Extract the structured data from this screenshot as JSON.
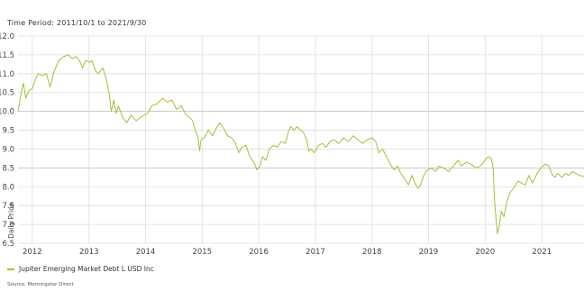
{
  "header": {
    "time_period": "Time Period: 2011/10/1 to 2021/9/30"
  },
  "legend": {
    "label": "Jupiter Emerging Market Debt L USD Inc"
  },
  "footer": {
    "source": "Source: Morningstar Direct"
  },
  "colors": {
    "line": "#9cc43c",
    "grid": "#dddddd",
    "baseline": "#bbbbbb"
  },
  "chart_data": {
    "type": "line",
    "title": "",
    "xlabel": "",
    "ylabel": "Daily Price",
    "ylim": [
      6.5,
      12.0
    ],
    "xlim": [
      "2011-10-01",
      "2021-09-30"
    ],
    "y_ticks": [
      6.5,
      7.0,
      7.5,
      8.0,
      8.5,
      9.0,
      9.5,
      10.0,
      10.5,
      11.0,
      11.5,
      12.0
    ],
    "x_ticks": [
      {
        "label": "2012",
        "date": "2012-01-01"
      },
      {
        "label": "2013",
        "date": "2013-01-01"
      },
      {
        "label": "2014",
        "date": "2014-01-01"
      },
      {
        "label": "2015",
        "date": "2015-01-01"
      },
      {
        "label": "2016",
        "date": "2016-01-01"
      },
      {
        "label": "2017",
        "date": "2017-01-01"
      },
      {
        "label": "2018",
        "date": "2018-01-01"
      },
      {
        "label": "2019",
        "date": "2019-01-01"
      },
      {
        "label": "2020",
        "date": "2020-01-01"
      },
      {
        "label": "2021",
        "date": "2021-01-01"
      }
    ],
    "grid": true,
    "series": [
      {
        "name": "Jupiter Emerging Market Debt L USD Inc",
        "points": [
          [
            "2011-10-01",
            10.0
          ],
          [
            "2011-10-20",
            10.45
          ],
          [
            "2011-11-05",
            10.75
          ],
          [
            "2011-11-20",
            10.35
          ],
          [
            "2011-12-10",
            10.55
          ],
          [
            "2012-01-01",
            10.6
          ],
          [
            "2012-01-20",
            10.85
          ],
          [
            "2012-02-10",
            11.0
          ],
          [
            "2012-03-05",
            10.95
          ],
          [
            "2012-04-01",
            11.0
          ],
          [
            "2012-04-25",
            10.65
          ],
          [
            "2012-05-20",
            11.05
          ],
          [
            "2012-06-20",
            11.35
          ],
          [
            "2012-07-20",
            11.45
          ],
          [
            "2012-08-20",
            11.5
          ],
          [
            "2012-09-15",
            11.4
          ],
          [
            "2012-10-10",
            11.45
          ],
          [
            "2012-11-01",
            11.35
          ],
          [
            "2012-11-20",
            11.15
          ],
          [
            "2012-12-10",
            11.35
          ],
          [
            "2013-01-05",
            11.3
          ],
          [
            "2013-01-20",
            11.35
          ],
          [
            "2013-02-10",
            11.1
          ],
          [
            "2013-03-01",
            11.0
          ],
          [
            "2013-04-01",
            11.15
          ],
          [
            "2013-04-20",
            10.9
          ],
          [
            "2013-05-10",
            10.5
          ],
          [
            "2013-05-25",
            10.0
          ],
          [
            "2013-06-10",
            10.3
          ],
          [
            "2013-06-25",
            9.95
          ],
          [
            "2013-07-10",
            10.15
          ],
          [
            "2013-08-05",
            9.85
          ],
          [
            "2013-09-01",
            9.7
          ],
          [
            "2013-10-01",
            9.9
          ],
          [
            "2013-11-01",
            9.75
          ],
          [
            "2013-12-01",
            9.85
          ],
          [
            "2014-01-15",
            9.95
          ],
          [
            "2014-02-10",
            10.15
          ],
          [
            "2014-03-15",
            10.2
          ],
          [
            "2014-04-20",
            10.35
          ],
          [
            "2014-05-20",
            10.25
          ],
          [
            "2014-06-20",
            10.3
          ],
          [
            "2014-07-20",
            10.05
          ],
          [
            "2014-08-20",
            10.15
          ],
          [
            "2014-09-20",
            9.9
          ],
          [
            "2014-10-10",
            9.85
          ],
          [
            "2014-11-01",
            9.75
          ],
          [
            "2014-11-20",
            9.45
          ],
          [
            "2014-12-05",
            9.35
          ],
          [
            "2014-12-15",
            8.95
          ],
          [
            "2014-12-25",
            9.25
          ],
          [
            "2015-01-15",
            9.3
          ],
          [
            "2015-02-10",
            9.5
          ],
          [
            "2015-03-10",
            9.35
          ],
          [
            "2015-04-01",
            9.55
          ],
          [
            "2015-04-25",
            9.7
          ],
          [
            "2015-05-20",
            9.55
          ],
          [
            "2015-06-15",
            9.35
          ],
          [
            "2015-07-10",
            9.3
          ],
          [
            "2015-08-05",
            9.15
          ],
          [
            "2015-08-25",
            8.9
          ],
          [
            "2015-09-15",
            9.05
          ],
          [
            "2015-10-10",
            9.1
          ],
          [
            "2015-11-05",
            8.8
          ],
          [
            "2015-12-01",
            8.65
          ],
          [
            "2015-12-20",
            8.45
          ],
          [
            "2016-01-10",
            8.55
          ],
          [
            "2016-01-25",
            8.8
          ],
          [
            "2016-02-15",
            8.7
          ],
          [
            "2016-03-10",
            9.0
          ],
          [
            "2016-04-05",
            9.1
          ],
          [
            "2016-05-01",
            9.05
          ],
          [
            "2016-05-25",
            9.2
          ],
          [
            "2016-06-20",
            9.15
          ],
          [
            "2016-07-10",
            9.45
          ],
          [
            "2016-07-25",
            9.6
          ],
          [
            "2016-08-15",
            9.5
          ],
          [
            "2016-09-05",
            9.6
          ],
          [
            "2016-09-25",
            9.5
          ],
          [
            "2016-10-15",
            9.45
          ],
          [
            "2016-11-05",
            9.25
          ],
          [
            "2016-11-20",
            8.95
          ],
          [
            "2016-12-05",
            9.0
          ],
          [
            "2016-12-25",
            8.9
          ],
          [
            "2017-01-20",
            9.1
          ],
          [
            "2017-02-15",
            9.15
          ],
          [
            "2017-03-10",
            9.05
          ],
          [
            "2017-04-05",
            9.2
          ],
          [
            "2017-05-01",
            9.25
          ],
          [
            "2017-06-01",
            9.15
          ],
          [
            "2017-07-01",
            9.3
          ],
          [
            "2017-08-01",
            9.2
          ],
          [
            "2017-09-01",
            9.35
          ],
          [
            "2017-10-01",
            9.25
          ],
          [
            "2017-11-01",
            9.15
          ],
          [
            "2017-12-01",
            9.25
          ],
          [
            "2018-01-01",
            9.3
          ],
          [
            "2018-01-25",
            9.2
          ],
          [
            "2018-02-15",
            8.9
          ],
          [
            "2018-03-10",
            9.0
          ],
          [
            "2018-04-10",
            8.75
          ],
          [
            "2018-05-05",
            8.55
          ],
          [
            "2018-05-25",
            8.45
          ],
          [
            "2018-06-15",
            8.55
          ],
          [
            "2018-07-05",
            8.35
          ],
          [
            "2018-08-01",
            8.2
          ],
          [
            "2018-08-25",
            8.05
          ],
          [
            "2018-09-15",
            8.3
          ],
          [
            "2018-10-05",
            8.1
          ],
          [
            "2018-10-25",
            7.95
          ],
          [
            "2018-11-10",
            8.05
          ],
          [
            "2018-12-01",
            8.3
          ],
          [
            "2018-12-25",
            8.45
          ],
          [
            "2019-01-20",
            8.5
          ],
          [
            "2019-02-15",
            8.4
          ],
          [
            "2019-03-10",
            8.55
          ],
          [
            "2019-04-10",
            8.5
          ],
          [
            "2019-05-10",
            8.4
          ],
          [
            "2019-06-10",
            8.55
          ],
          [
            "2019-07-10",
            8.7
          ],
          [
            "2019-08-01",
            8.55
          ],
          [
            "2019-09-01",
            8.65
          ],
          [
            "2019-10-01",
            8.6
          ],
          [
            "2019-11-01",
            8.5
          ],
          [
            "2019-12-01",
            8.55
          ],
          [
            "2020-01-01",
            8.7
          ],
          [
            "2020-01-20",
            8.8
          ],
          [
            "2020-02-10",
            8.75
          ],
          [
            "2020-02-22",
            8.5
          ],
          [
            "2020-03-01",
            7.7
          ],
          [
            "2020-03-10",
            7.2
          ],
          [
            "2020-03-20",
            6.75
          ],
          [
            "2020-04-01",
            6.95
          ],
          [
            "2020-04-15",
            7.35
          ],
          [
            "2020-05-01",
            7.2
          ],
          [
            "2020-05-20",
            7.6
          ],
          [
            "2020-06-10",
            7.85
          ],
          [
            "2020-07-01",
            7.95
          ],
          [
            "2020-08-01",
            8.15
          ],
          [
            "2020-08-20",
            8.1
          ],
          [
            "2020-09-15",
            8.05
          ],
          [
            "2020-10-10",
            8.3
          ],
          [
            "2020-11-01",
            8.1
          ],
          [
            "2020-12-01",
            8.35
          ],
          [
            "2021-01-05",
            8.55
          ],
          [
            "2021-01-25",
            8.6
          ],
          [
            "2021-02-15",
            8.55
          ],
          [
            "2021-03-05",
            8.35
          ],
          [
            "2021-03-25",
            8.25
          ],
          [
            "2021-04-15",
            8.35
          ],
          [
            "2021-05-10",
            8.25
          ],
          [
            "2021-06-01",
            8.35
          ],
          [
            "2021-06-25",
            8.3
          ],
          [
            "2021-07-15",
            8.4
          ],
          [
            "2021-08-10",
            8.35
          ],
          [
            "2021-09-01",
            8.3
          ],
          [
            "2021-09-30",
            8.28
          ]
        ]
      }
    ]
  }
}
